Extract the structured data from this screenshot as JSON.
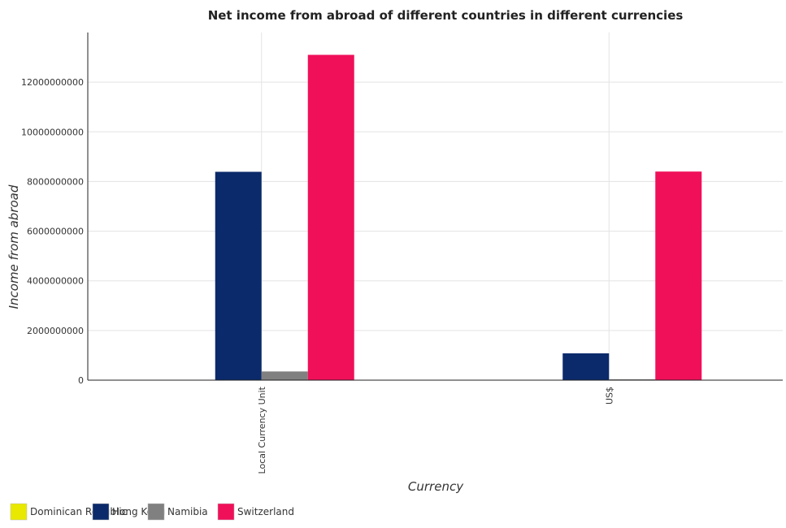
{
  "chart_data": {
    "type": "bar",
    "title": "Net income from abroad of different countries in different currencies",
    "xlabel": "Currency",
    "ylabel": "Income from abroad",
    "categories": [
      "Local Currency Unit",
      "US$"
    ],
    "series": [
      {
        "name": "Dominican Republic",
        "color": "#e8e800",
        "values": [
          0,
          0
        ]
      },
      {
        "name": "Hong Kong",
        "color": "#0b2a6b",
        "values": [
          8390000000,
          1080000000
        ]
      },
      {
        "name": "Namibia",
        "color": "#808080",
        "values": [
          350000000,
          35000000
        ]
      },
      {
        "name": "Switzerland",
        "color": "#f0105a",
        "values": [
          13100000000,
          8400000000
        ]
      }
    ],
    "yticks": [
      "0",
      "2000000000",
      "4000000000",
      "6000000000",
      "8000000000",
      "10000000000",
      "12000000000"
    ],
    "ylim": [
      0,
      14000000000
    ],
    "grid": true,
    "legend_position": "bottom-left"
  }
}
